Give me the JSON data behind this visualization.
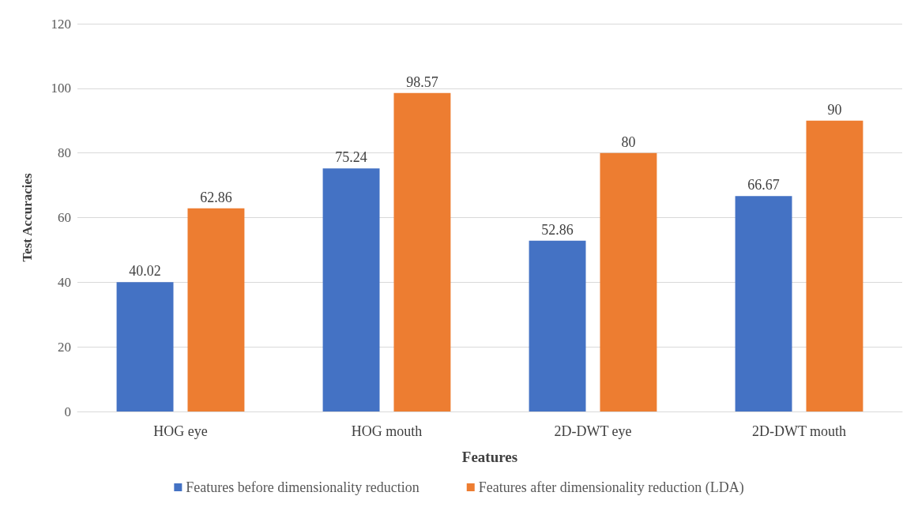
{
  "chart_data": {
    "type": "bar",
    "xlabel": "Features",
    "ylabel": "Test Accuracies",
    "categories": [
      "HOG eye",
      "HOG mouth",
      "2D-DWT eye",
      "2D-DWT mouth"
    ],
    "series": [
      {
        "name": "Features before dimensionality reduction",
        "color": "#4472c4",
        "values": [
          40.02,
          75.24,
          52.86,
          66.67
        ]
      },
      {
        "name": "Features after dimensionality reduction (LDA)",
        "color": "#ed7d31",
        "values": [
          62.86,
          98.57,
          80,
          90
        ]
      }
    ],
    "ylim": [
      0,
      120
    ],
    "yticks": [
      0,
      20,
      40,
      60,
      80,
      100,
      120
    ],
    "grid": "y",
    "legend": "bottom",
    "data_labels": true
  }
}
